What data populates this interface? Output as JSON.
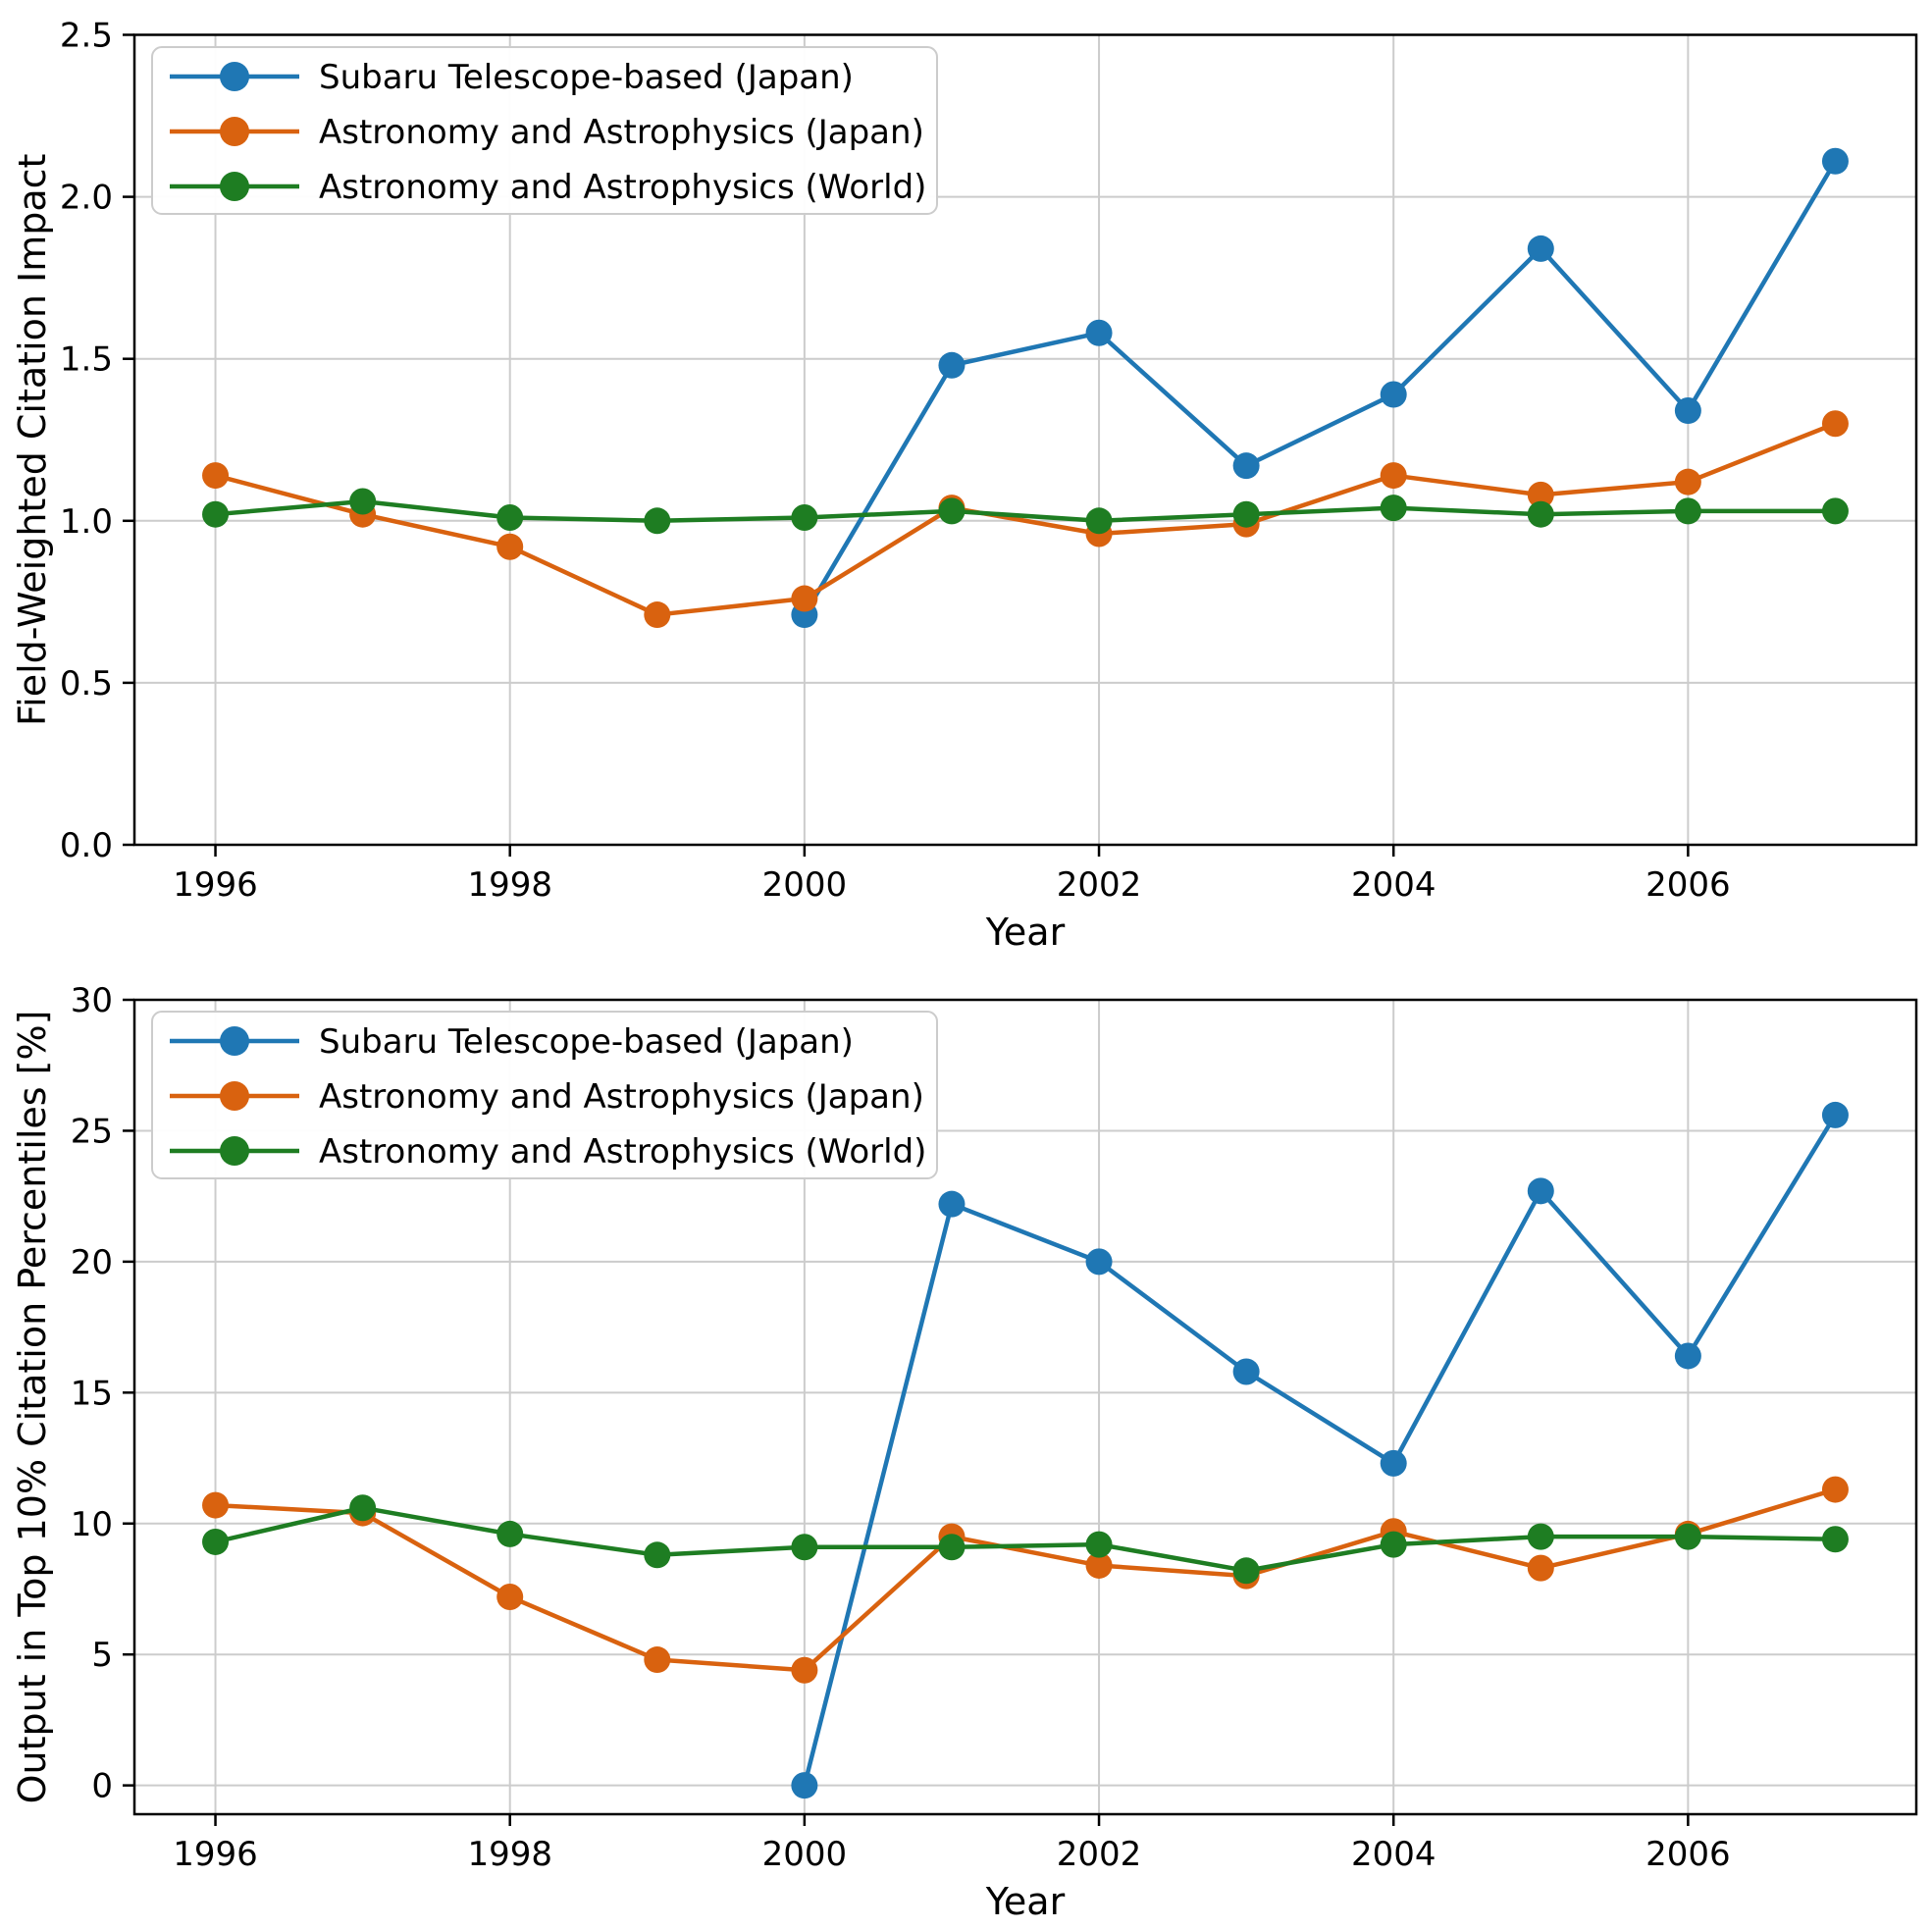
{
  "figure": {
    "background": "#ffffff"
  },
  "colors": {
    "blue": "#1f77b4",
    "orange": "#d9620f",
    "green": "#1e7d22",
    "grid": "#cccccc",
    "spine": "#000000",
    "tick": "#000000",
    "text": "#000000",
    "legend_border": "#cccccc",
    "legend_bg": "#ffffff"
  },
  "chart_data": [
    {
      "type": "line",
      "title": "",
      "xlabel": "Year",
      "ylabel": "Field-Weighted Citation Impact",
      "xlim": [
        1995.45,
        2007.55
      ],
      "ylim": [
        0,
        2.5
      ],
      "x_ticks": [
        1996,
        1998,
        2000,
        2002,
        2004,
        2006
      ],
      "x_tick_labels": [
        "1996",
        "1998",
        "2000",
        "2002",
        "2004",
        "2006"
      ],
      "y_ticks": [
        0,
        0.5,
        1.0,
        1.5,
        2.0,
        2.5
      ],
      "y_tick_labels": [
        "0.0",
        "0.5",
        "1.0",
        "1.5",
        "2.0",
        "2.5"
      ],
      "grid": true,
      "legend_position": "upper-left",
      "series": [
        {
          "id": "subaru-japan",
          "name": "Subaru Telescope-based (Japan)",
          "color": "blue",
          "x": [
            2000,
            2001,
            2002,
            2003,
            2004,
            2005,
            2006,
            2007
          ],
          "y": [
            0.71,
            1.48,
            1.58,
            1.17,
            1.39,
            1.84,
            1.34,
            2.11
          ]
        },
        {
          "id": "aa-japan",
          "name": "Astronomy and Astrophysics (Japan)",
          "color": "orange",
          "x": [
            1996,
            1997,
            1998,
            1999,
            2000,
            2001,
            2002,
            2003,
            2004,
            2005,
            2006,
            2007
          ],
          "y": [
            1.14,
            1.02,
            0.92,
            0.71,
            0.76,
            1.04,
            0.96,
            0.99,
            1.14,
            1.08,
            1.12,
            1.3
          ]
        },
        {
          "id": "aa-world",
          "name": "Astronomy and Astrophysics (World)",
          "color": "green",
          "x": [
            1996,
            1997,
            1998,
            1999,
            2000,
            2001,
            2002,
            2003,
            2004,
            2005,
            2006,
            2007
          ],
          "y": [
            1.02,
            1.06,
            1.01,
            1.0,
            1.01,
            1.03,
            1.0,
            1.02,
            1.04,
            1.02,
            1.03,
            1.03
          ]
        }
      ]
    },
    {
      "type": "line",
      "title": "",
      "xlabel": "Year",
      "ylabel": "Output in Top 10% Citation Percentiles [%]",
      "xlim": [
        1995.45,
        2007.55
      ],
      "ylim": [
        -1.1,
        30
      ],
      "x_ticks": [
        1996,
        1998,
        2000,
        2002,
        2004,
        2006
      ],
      "x_tick_labels": [
        "1996",
        "1998",
        "2000",
        "2002",
        "2004",
        "2006"
      ],
      "y_ticks": [
        0,
        5,
        10,
        15,
        20,
        25,
        30
      ],
      "y_tick_labels": [
        "0",
        "5",
        "10",
        "15",
        "20",
        "25",
        "30"
      ],
      "grid": true,
      "legend_position": "upper-left",
      "series": [
        {
          "id": "subaru-japan",
          "name": "Subaru Telescope-based (Japan)",
          "color": "blue",
          "x": [
            2000,
            2001,
            2002,
            2003,
            2004,
            2005,
            2006,
            2007
          ],
          "y": [
            0.0,
            22.2,
            20.0,
            15.8,
            12.3,
            22.7,
            16.4,
            25.6
          ]
        },
        {
          "id": "aa-japan",
          "name": "Astronomy and Astrophysics (Japan)",
          "color": "orange",
          "x": [
            1996,
            1997,
            1998,
            1999,
            2000,
            2001,
            2002,
            2003,
            2004,
            2005,
            2006,
            2007
          ],
          "y": [
            10.7,
            10.4,
            7.2,
            4.8,
            4.4,
            9.5,
            8.4,
            8.0,
            9.7,
            8.3,
            9.6,
            11.3
          ]
        },
        {
          "id": "aa-world",
          "name": "Astronomy and Astrophysics (World)",
          "color": "green",
          "x": [
            1996,
            1997,
            1998,
            1999,
            2000,
            2001,
            2002,
            2003,
            2004,
            2005,
            2006,
            2007
          ],
          "y": [
            9.3,
            10.6,
            9.6,
            8.8,
            9.1,
            9.1,
            9.2,
            8.2,
            9.2,
            9.5,
            9.5,
            9.4
          ]
        }
      ]
    }
  ]
}
